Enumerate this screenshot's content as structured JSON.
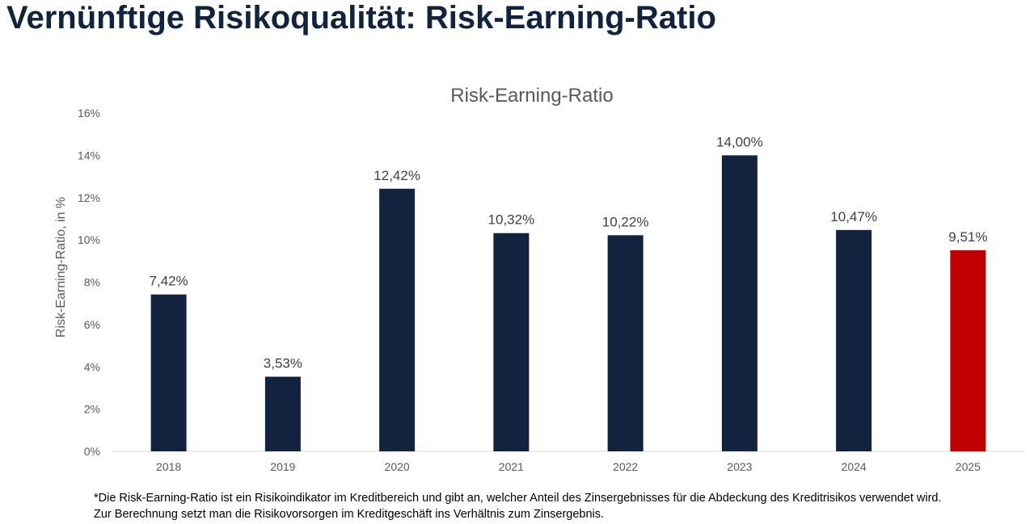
{
  "page": {
    "title": "Vernünftige Risikoqualität: Risk-Earning-Ratio",
    "footnote_line1": "*Die Risk-Earning-Ratio ist ein Risikoindikator im Kreditbereich und gibt an, welcher Anteil des Zinsergebnisses für die Abdeckung des Kreditrisikos verwendet wird.",
    "footnote_line2": "Zur Berechnung setzt man die Risikovorsorgen im Kreditgeschäft ins Verhältnis zum Zinsergebnis."
  },
  "colors": {
    "title": "#12233f",
    "bar_default": "#12233f",
    "bar_highlight": "#c00000",
    "axis_text": "#595959",
    "axis_line": "#d9d9d9"
  },
  "chart_data": {
    "type": "bar",
    "title": "Risk-Earning-Ratio",
    "xlabel": "",
    "ylabel": "Risk-Earning-Ratio, in %",
    "categories": [
      "2018",
      "2019",
      "2020",
      "2021",
      "2022",
      "2023",
      "2024",
      "2025"
    ],
    "values": [
      7.42,
      3.53,
      12.42,
      10.32,
      10.22,
      14.0,
      10.47,
      9.51
    ],
    "data_labels": [
      "7,42%",
      "3,53%",
      "12,42%",
      "10,32%",
      "10,22%",
      "14,00%",
      "10,47%",
      "9,51%"
    ],
    "highlight_index": 7,
    "ylim": [
      0,
      16
    ],
    "y_ticks": [
      0,
      2,
      4,
      6,
      8,
      10,
      12,
      14,
      16
    ],
    "y_tick_labels": [
      "0%",
      "2%",
      "4%",
      "6%",
      "8%",
      "10%",
      "12%",
      "14%",
      "16%"
    ],
    "grid": false,
    "legend": "none"
  }
}
